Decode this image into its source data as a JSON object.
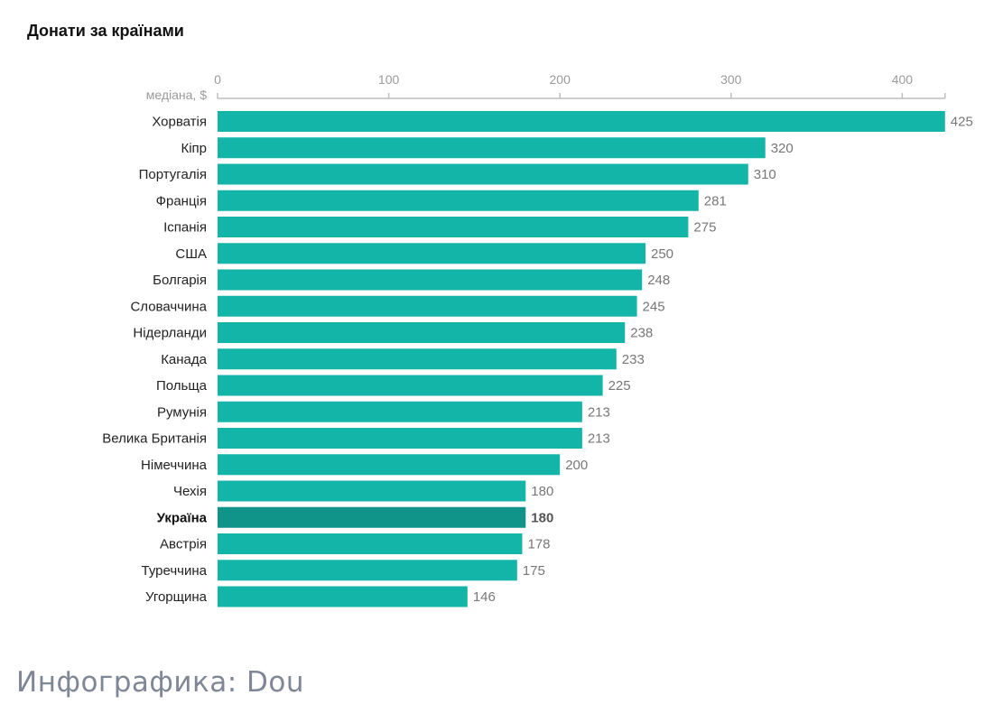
{
  "page": {
    "title": "Донати за країнами",
    "footer": "Инфографика: Dou"
  },
  "colors": {
    "bar": "#13b5a8",
    "highlight": "#10948a",
    "axis": "#bdbdbd"
  },
  "chart_data": {
    "type": "bar",
    "orientation": "horizontal",
    "title": "Донати за країнами",
    "unit_label": "медіана, $",
    "xlim": [
      0,
      425
    ],
    "ticks": [
      0,
      100,
      200,
      300,
      400
    ],
    "tick_labels": [
      "0",
      "100",
      "200",
      "300",
      "400"
    ],
    "categories": [
      "Хорватія",
      "Кіпр",
      "Португалія",
      "Франція",
      "Іспанія",
      "США",
      "Болгарія",
      "Словаччина",
      "Нідерланди",
      "Канада",
      "Польща",
      "Румунія",
      "Велика Британія",
      "Німеччина",
      "Чехія",
      "Україна",
      "Австрія",
      "Туреччина",
      "Угорщина"
    ],
    "values": [
      425,
      320,
      310,
      281,
      275,
      250,
      248,
      245,
      238,
      233,
      225,
      213,
      213,
      200,
      180,
      180,
      178,
      175,
      146
    ],
    "highlight": "Україна",
    "grid": false
  }
}
